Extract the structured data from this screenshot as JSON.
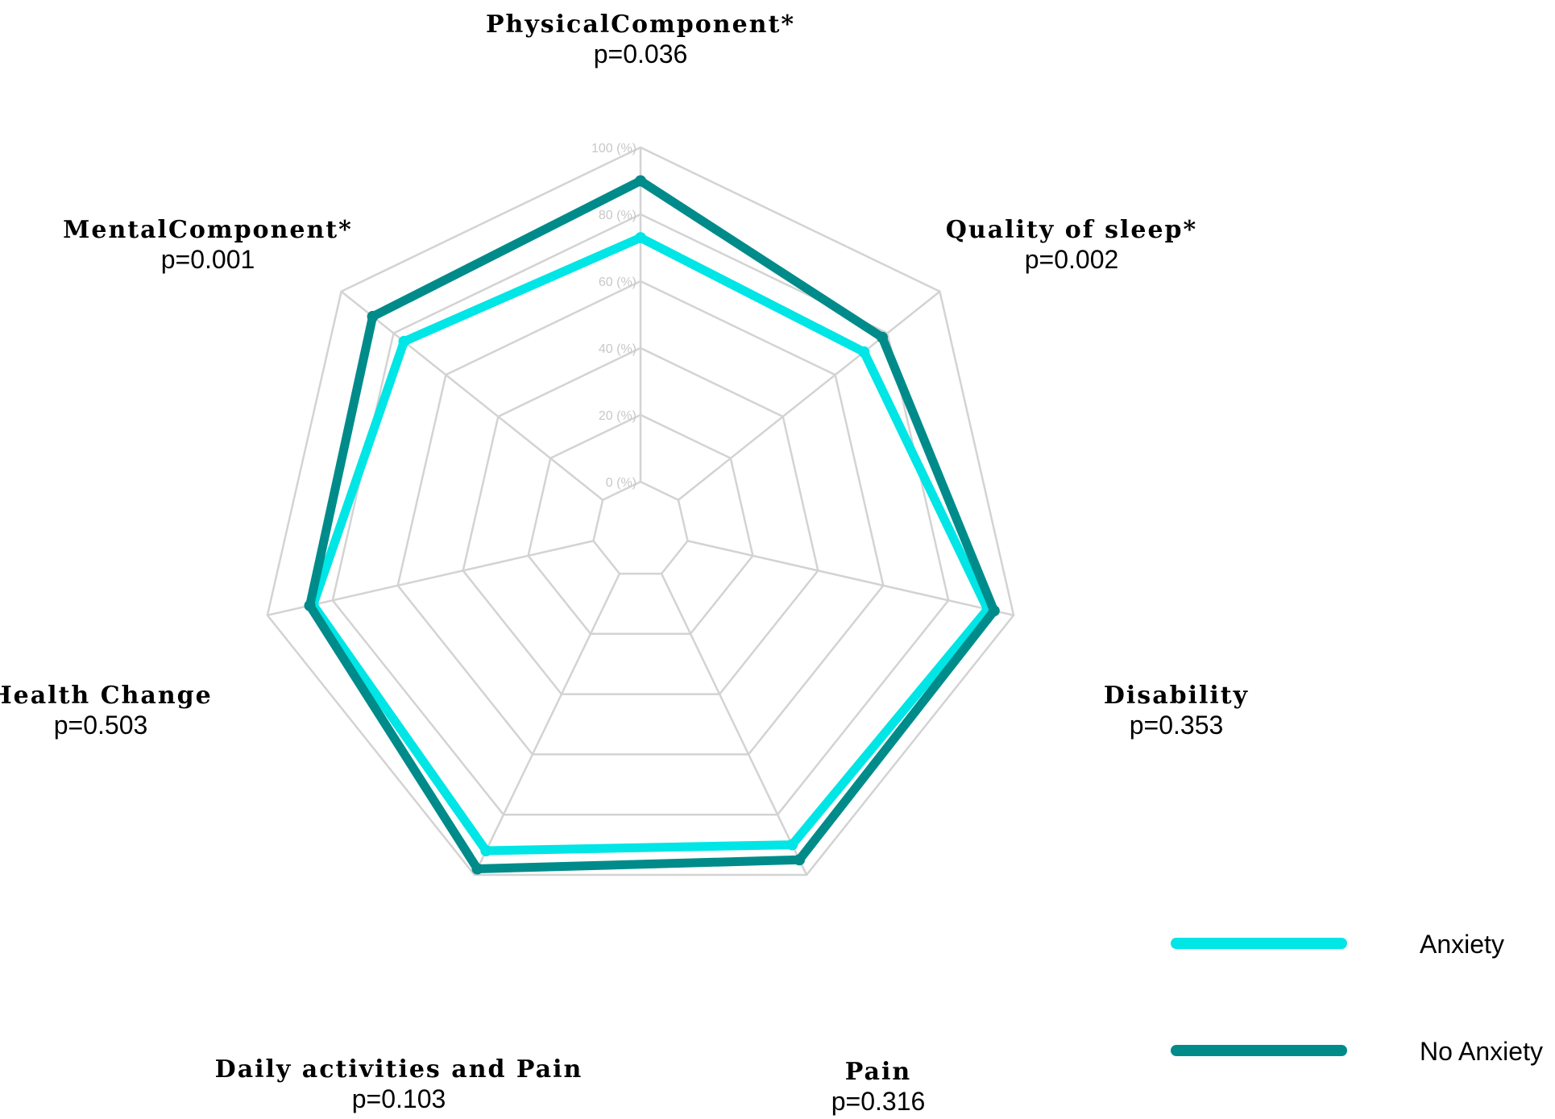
{
  "chart_data": {
    "type": "radar",
    "axes": [
      {
        "name": "PhysicalComponent*",
        "p": "p=0.036"
      },
      {
        "name": "Quality of sleep*",
        "p": "p=0.002"
      },
      {
        "name": "Disability",
        "p": "p=0.353"
      },
      {
        "name": "Pain",
        "p": "p=0.316"
      },
      {
        "name": "Daily activities and Pain",
        "p": "p=0.103"
      },
      {
        "name": "Health Change",
        "p": "p=0.503"
      },
      {
        "name": "MentalComponent*",
        "p": "p=0.001"
      }
    ],
    "ticks": [
      "0 (%)",
      "20 (%)",
      "40 (%)",
      "60 (%)",
      "80 (%)",
      "100 (%)"
    ],
    "tick_values": [
      0,
      20,
      40,
      60,
      80,
      100
    ],
    "range": [
      0,
      100
    ],
    "series": [
      {
        "name": "Anxiety",
        "color": "#00e5e5",
        "values": [
          73,
          71,
          92,
          90,
          92,
          86,
          76
        ]
      },
      {
        "name": "No Anxiety",
        "color": "#008b8b",
        "values": [
          90,
          78,
          94,
          95,
          98,
          87,
          88
        ]
      }
    ],
    "legend_position": "bottom-right",
    "grid": true
  }
}
